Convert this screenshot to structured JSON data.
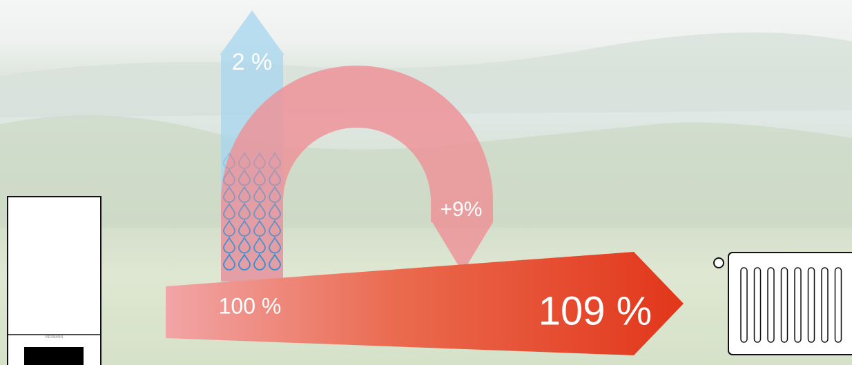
{
  "labels": {
    "evaporation": "2 %",
    "gain": "+9%",
    "input": "100 %",
    "output": "109 %"
  },
  "boiler": {
    "logo": "VIESMANN"
  }
}
